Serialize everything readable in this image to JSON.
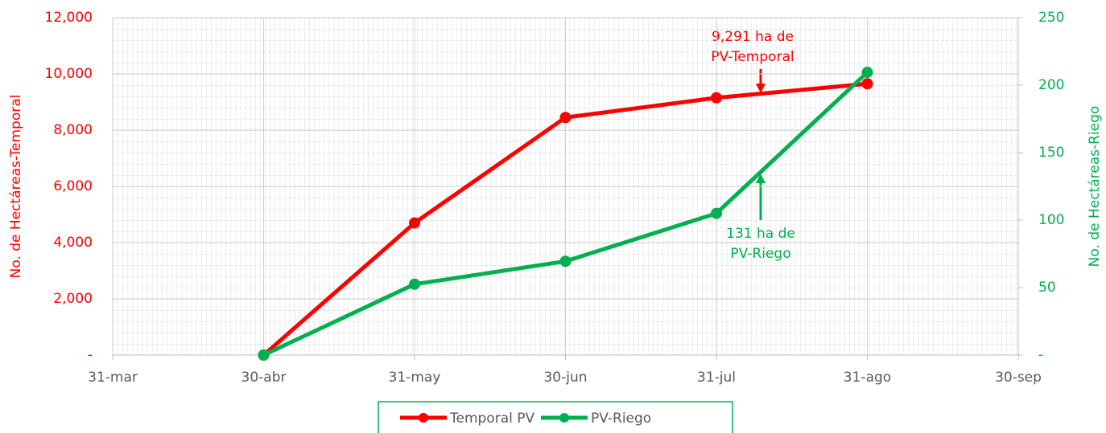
{
  "chart_data": {
    "type": "line",
    "categories": [
      "31-mar",
      "30-abr",
      "31-may",
      "30-jun",
      "31-jul",
      "31-ago",
      "30-sep"
    ],
    "series": [
      {
        "name": "Temporal PV",
        "color": "#ff0000",
        "axis": "y",
        "values": [
          null,
          0,
          4700,
          8450,
          9150,
          9650,
          null
        ]
      },
      {
        "name": "PV-Riego",
        "color": "#00b050",
        "axis": "y2",
        "values": [
          null,
          0,
          52.5,
          69.5,
          105,
          209.5,
          null
        ]
      }
    ],
    "ylim": [
      0,
      12000
    ],
    "yticks": [
      {
        "value": 0,
        "label": "-"
      },
      {
        "value": 2000,
        "label": "2,000"
      },
      {
        "value": 4000,
        "label": "4,000"
      },
      {
        "value": 6000,
        "label": "6,000"
      },
      {
        "value": 8000,
        "label": "8,000"
      },
      {
        "value": 10000,
        "label": "10,000"
      },
      {
        "value": 12000,
        "label": "12,000"
      }
    ],
    "y2lim": [
      0,
      250
    ],
    "y2ticks": [
      {
        "value": 0,
        "label": "-"
      },
      50,
      100,
      150,
      200,
      250
    ],
    "ylabel": "No. de Hectáreas-Temporal",
    "y2label": "No. de Hectáreas-Riego",
    "annotations": [
      {
        "lines": [
          "9,291 ha de",
          "PV-Temporal"
        ],
        "color": "#ff0000"
      },
      {
        "lines": [
          "131 ha de",
          "PV-Riego"
        ],
        "color": "#00b050"
      }
    ],
    "grid": true,
    "legend": "bottom"
  }
}
